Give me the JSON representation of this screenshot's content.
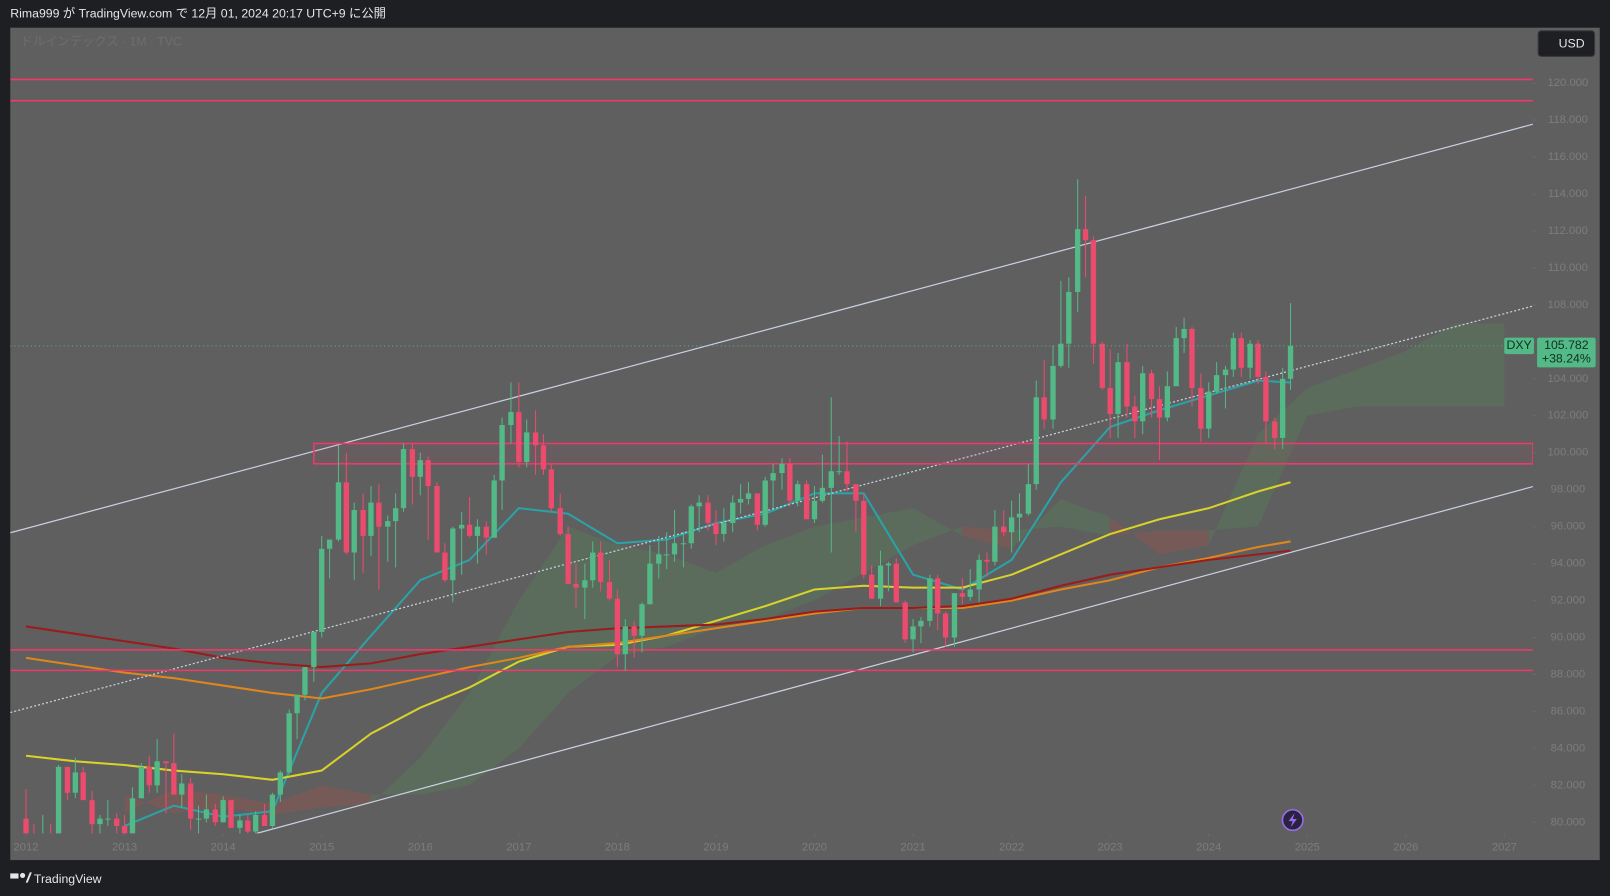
{
  "header": {
    "text": "Rima999 が TradingView.com で 12月 01, 2024 20:17 UTC+9 に公開"
  },
  "footer": {
    "logo": "TradingView"
  },
  "chart_data": {
    "type": "candlestick",
    "title": "ドルインデックス · 1M · TVC",
    "currency": "USD",
    "symbol": "DXY",
    "last_price": 105.782,
    "change_label": "+38.24%",
    "up_color": "#53b987",
    "down_color": "#ec4b6d",
    "xlim": [
      2011.84,
      2027.29
    ],
    "xticks": [
      2012,
      2013,
      2014,
      2015,
      2016,
      2017,
      2018,
      2019,
      2020,
      2021,
      2022,
      2023,
      2024,
      2025,
      2026,
      2027
    ],
    "ylim": [
      79.4,
      123
    ],
    "yticks": [
      {
        "value": 80,
        "label": "80.000"
      },
      {
        "value": 82,
        "label": "82.000"
      },
      {
        "value": 84,
        "label": "84.000"
      },
      {
        "value": 86,
        "label": "86.000"
      },
      {
        "value": 88,
        "label": "88.000"
      },
      {
        "value": 90,
        "label": "90.000"
      },
      {
        "value": 92,
        "label": "92.000"
      },
      {
        "value": 94,
        "label": "94.000"
      },
      {
        "value": 96,
        "label": "96.000"
      },
      {
        "value": 98,
        "label": "98.000"
      },
      {
        "value": 100,
        "label": "100.000"
      },
      {
        "value": 102,
        "label": "102.000"
      },
      {
        "value": 104,
        "label": "104.000"
      },
      {
        "value": 106,
        "label": "106.000"
      },
      {
        "value": 108,
        "label": "108.000"
      },
      {
        "value": 110,
        "label": "110.000"
      },
      {
        "value": 112,
        "label": "112.000"
      },
      {
        "value": 114,
        "label": "114.000"
      },
      {
        "value": 116,
        "label": "116.000"
      },
      {
        "value": 118,
        "label": "118.000"
      },
      {
        "value": 120,
        "label": "120.000"
      }
    ],
    "grid": false,
    "x": [
      2012,
      2012.08,
      2012.17,
      2012.25,
      2012.33,
      2012.42,
      2012.5,
      2012.58,
      2012.67,
      2012.75,
      2012.83,
      2012.92,
      2013,
      2013.08,
      2013.17,
      2013.25,
      2013.33,
      2013.42,
      2013.5,
      2013.58,
      2013.67,
      2013.75,
      2013.83,
      2013.92,
      2014,
      2014.08,
      2014.17,
      2014.25,
      2014.33,
      2014.42,
      2014.5,
      2014.58,
      2014.67,
      2014.75,
      2014.83,
      2014.92,
      2015,
      2015.08,
      2015.17,
      2015.25,
      2015.33,
      2015.42,
      2015.5,
      2015.58,
      2015.67,
      2015.75,
      2015.83,
      2015.92,
      2016,
      2016.08,
      2016.17,
      2016.25,
      2016.33,
      2016.42,
      2016.5,
      2016.58,
      2016.67,
      2016.75,
      2016.83,
      2016.92,
      2017,
      2017.08,
      2017.17,
      2017.25,
      2017.33,
      2017.42,
      2017.5,
      2017.58,
      2017.67,
      2017.75,
      2017.83,
      2017.92,
      2018,
      2018.08,
      2018.17,
      2018.25,
      2018.33,
      2018.42,
      2018.5,
      2018.58,
      2018.67,
      2018.75,
      2018.83,
      2018.92,
      2019,
      2019.08,
      2019.17,
      2019.25,
      2019.33,
      2019.42,
      2019.5,
      2019.58,
      2019.67,
      2019.75,
      2019.83,
      2019.92,
      2020,
      2020.08,
      2020.17,
      2020.25,
      2020.33,
      2020.42,
      2020.5,
      2020.58,
      2020.67,
      2020.75,
      2020.83,
      2020.92,
      2021,
      2021.08,
      2021.17,
      2021.25,
      2021.33,
      2021.42,
      2021.5,
      2021.58,
      2021.67,
      2021.75,
      2021.83,
      2021.92,
      2022,
      2022.08,
      2022.17,
      2022.25,
      2022.33,
      2022.42,
      2022.5,
      2022.58,
      2022.67,
      2022.75,
      2022.83,
      2022.92,
      2023,
      2023.08,
      2023.17,
      2023.25,
      2023.33,
      2023.42,
      2023.5,
      2023.58,
      2023.67,
      2023.75,
      2023.83,
      2023.92,
      2024,
      2024.08,
      2024.17,
      2024.25,
      2024.33,
      2024.42,
      2024.5,
      2024.58,
      2024.67,
      2024.75,
      2024.83
    ],
    "open": [
      80.2,
      79.3,
      79.0,
      79.0,
      78.8,
      83.0,
      81.6,
      82.7,
      81.2,
      79.9,
      80.2,
      80.2,
      79.8,
      79.2,
      81.3,
      83.0,
      82.0,
      83.3,
      83.2,
      81.5,
      82.1,
      80.2,
      80.2,
      80.7,
      80.0,
      81.2,
      79.7,
      80.1,
      79.5,
      80.4,
      79.8,
      81.5,
      82.7,
      85.9,
      86.9,
      88.4,
      90.3,
      94.8,
      95.3,
      98.4,
      94.6,
      96.9,
      95.5,
      97.3,
      96.0,
      96.3,
      97.0,
      100.2,
      98.7,
      99.6,
      98.2,
      94.6,
      93.1,
      95.9,
      96.1,
      95.5,
      96.0,
      95.4,
      98.5,
      101.5,
      102.2,
      99.5,
      101.1,
      100.4,
      99.1,
      97.0,
      95.6,
      92.9,
      92.7,
      93.1,
      94.6,
      93.0,
      92.1,
      89.1,
      90.6,
      90.1,
      91.8,
      94.0,
      94.5,
      94.5,
      95.1,
      95.1,
      97.1,
      97.3,
      96.2,
      95.6,
      96.2,
      97.3,
      97.5,
      97.8,
      96.1,
      98.5,
      98.9,
      99.4,
      97.4,
      98.3,
      96.4,
      97.4,
      98.1,
      99.0,
      99.0,
      98.3,
      97.4,
      93.4,
      92.1,
      93.9,
      94.0,
      91.9,
      89.9,
      90.6,
      90.9,
      93.2,
      91.3,
      90.0,
      92.4,
      92.2,
      92.6,
      94.2,
      94.1,
      96.0,
      95.7,
      96.5,
      96.7,
      98.3,
      103.0,
      101.8,
      104.7,
      105.9,
      108.7,
      112.1,
      111.5,
      105.9,
      103.5,
      102.1,
      104.9,
      102.5,
      101.7,
      104.3,
      102.9,
      101.9,
      103.6,
      106.2,
      106.7,
      103.5,
      101.3,
      103.3,
      104.2,
      104.5,
      106.2,
      104.6,
      105.9,
      104.1,
      101.7,
      100.8,
      104.0
    ],
    "high": [
      81.8,
      79.9,
      80.4,
      79.9,
      83.1,
      83.0,
      83.5,
      83.0,
      81.7,
      80.4,
      81.2,
      80.5,
      80.4,
      81.9,
      83.2,
      83.6,
      84.5,
      83.3,
      84.8,
      82.6,
      82.4,
      80.9,
      81.5,
      81.0,
      81.4,
      81.2,
      80.4,
      80.4,
      80.6,
      81.0,
      81.6,
      82.8,
      86.1,
      86.9,
      88.4,
      90.3,
      95.5,
      95.3,
      100.4,
      100.0,
      97.3,
      97.8,
      98.2,
      98.3,
      96.6,
      97.8,
      100.5,
      100.5,
      100.0,
      99.8,
      98.4,
      95.1,
      96.0,
      96.8,
      97.6,
      96.4,
      96.3,
      98.8,
      101.9,
      103.8,
      103.8,
      101.8,
      102.3,
      101.0,
      99.4,
      97.8,
      96.0,
      94.0,
      94.0,
      95.2,
      95.2,
      94.2,
      92.6,
      91.0,
      90.9,
      91.9,
      95.0,
      95.5,
      95.7,
      96.9,
      95.7,
      97.2,
      97.7,
      97.7,
      96.9,
      97.0,
      97.7,
      98.3,
      98.4,
      97.8,
      98.7,
      99.4,
      99.7,
      99.7,
      98.5,
      98.5,
      98.2,
      99.9,
      103.0,
      100.9,
      100.6,
      98.3,
      97.8,
      93.9,
      94.7,
      94.1,
      94.3,
      92.0,
      91.0,
      91.1,
      93.4,
      93.4,
      91.4,
      92.4,
      93.2,
      93.7,
      94.5,
      94.6,
      96.9,
      96.9,
      97.4,
      97.8,
      99.4,
      103.9,
      105.0,
      105.8,
      109.3,
      109.5,
      114.8,
      113.9,
      111.7,
      106.0,
      105.6,
      105.4,
      105.9,
      103.1,
      104.7,
      104.5,
      103.6,
      104.4,
      106.8,
      107.3,
      106.8,
      104.3,
      103.8,
      104.9,
      104.7,
      106.5,
      106.5,
      106.1,
      106.1,
      104.4,
      101.9,
      104.6,
      108.1
    ],
    "low": [
      78.9,
      78.1,
      78.6,
      78.7,
      78.7,
      81.2,
      81.3,
      81.2,
      78.6,
      79.0,
      79.8,
      79.0,
      79.0,
      78.9,
      81.3,
      81.6,
      81.6,
      80.5,
      81.6,
      80.8,
      79.6,
      79.0,
      80.0,
      79.8,
      80.0,
      79.7,
      79.2,
      79.2,
      78.9,
      79.8,
      79.7,
      81.1,
      82.6,
      84.5,
      86.6,
      87.6,
      90.0,
      93.2,
      95.2,
      94.5,
      93.1,
      93.5,
      94.4,
      92.6,
      94.1,
      93.8,
      96.8,
      97.2,
      97.7,
      95.3,
      94.6,
      93.0,
      91.9,
      93.4,
      95.4,
      94.0,
      94.5,
      95.4,
      96.9,
      100.5,
      99.2,
      99.2,
      98.8,
      98.8,
      96.8,
      95.5,
      92.9,
      91.6,
      91.0,
      92.7,
      92.5,
      92.0,
      88.4,
      88.2,
      88.9,
      89.2,
      91.8,
      93.2,
      93.7,
      94.1,
      93.8,
      94.8,
      95.7,
      95.8,
      95.0,
      95.2,
      95.7,
      96.7,
      97.2,
      95.8,
      96.0,
      97.0,
      98.0,
      97.1,
      97.1,
      96.4,
      96.2,
      97.3,
      94.6,
      98.8,
      97.9,
      95.7,
      93.2,
      92.1,
      91.7,
      92.5,
      91.9,
      89.7,
      89.2,
      89.7,
      90.6,
      90.4,
      89.5,
      89.5,
      91.8,
      92.0,
      91.9,
      93.3,
      93.9,
      95.5,
      94.6,
      95.2,
      96.6,
      98.0,
      101.3,
      101.3,
      104.6,
      104.6,
      107.6,
      109.5,
      104.8,
      103.4,
      100.8,
      100.8,
      101.9,
      100.8,
      101.0,
      101.9,
      99.6,
      101.7,
      103.6,
      105.4,
      102.5,
      100.6,
      100.8,
      103.2,
      102.4,
      104.1,
      104.1,
      104.0,
      103.7,
      100.5,
      100.2,
      100.2,
      103.4
    ],
    "close": [
      79.3,
      79.0,
      79.0,
      78.8,
      83.0,
      81.6,
      82.7,
      81.2,
      79.9,
      80.2,
      80.2,
      79.8,
      79.2,
      81.3,
      83.0,
      82.0,
      83.3,
      83.2,
      81.5,
      82.1,
      80.2,
      80.2,
      80.7,
      80.0,
      81.2,
      79.7,
      80.1,
      79.5,
      80.4,
      79.8,
      81.5,
      82.7,
      85.9,
      86.9,
      88.4,
      90.3,
      94.8,
      95.3,
      98.4,
      94.6,
      96.9,
      95.5,
      97.3,
      96.0,
      96.3,
      97.0,
      100.2,
      98.7,
      99.6,
      98.2,
      94.6,
      93.1,
      95.9,
      96.1,
      95.5,
      96.0,
      95.4,
      98.5,
      101.5,
      102.2,
      99.5,
      101.1,
      100.4,
      99.1,
      97.0,
      95.6,
      92.9,
      92.7,
      93.1,
      94.6,
      93.0,
      92.1,
      89.1,
      90.6,
      90.1,
      91.8,
      94.0,
      94.5,
      94.5,
      95.1,
      95.1,
      97.1,
      97.3,
      96.2,
      95.6,
      96.2,
      97.3,
      97.5,
      97.8,
      96.1,
      98.5,
      98.9,
      99.4,
      97.4,
      98.3,
      96.4,
      97.4,
      98.1,
      99.0,
      99.0,
      98.3,
      97.4,
      93.4,
      92.1,
      93.9,
      94.0,
      91.9,
      89.9,
      90.6,
      90.9,
      93.2,
      91.3,
      90.0,
      92.4,
      92.2,
      92.6,
      94.2,
      94.1,
      96.0,
      95.7,
      96.5,
      96.7,
      98.3,
      103.0,
      101.8,
      104.7,
      105.9,
      108.7,
      112.1,
      111.5,
      105.9,
      103.5,
      102.1,
      104.9,
      102.5,
      101.7,
      104.3,
      102.9,
      101.9,
      103.6,
      106.2,
      106.7,
      103.5,
      101.3,
      103.3,
      104.2,
      104.5,
      106.2,
      104.6,
      105.9,
      104.1,
      101.7,
      100.8,
      104.0,
      105.782
    ],
    "moving_averages": {
      "x": [
        2012,
        2012.5,
        2013,
        2013.5,
        2014,
        2014.5,
        2015,
        2015.5,
        2016,
        2016.5,
        2017,
        2017.5,
        2018,
        2018.5,
        2019,
        2019.5,
        2020,
        2020.5,
        2021,
        2021.5,
        2022,
        2022.5,
        2023,
        2023.5,
        2024,
        2024.5,
        2024.83
      ],
      "series": [
        {
          "color": "#2aa3a8",
          "values": [
            null,
            null,
            79.8,
            80.9,
            80.3,
            80.6,
            87,
            90.1,
            93.1,
            94.2,
            97,
            96.7,
            95.1,
            95.3,
            96.2,
            96.7,
            97.8,
            97.8,
            93.4,
            92.6,
            94.2,
            98.4,
            101.4,
            102.3,
            103.1,
            103.9,
            103.8
          ]
        },
        {
          "color": "#d9d22a",
          "values": [
            83.6,
            83.3,
            83.1,
            82.8,
            82.6,
            82.3,
            82.8,
            84.8,
            86.2,
            87.3,
            88.7,
            89.5,
            89.6,
            90.1,
            90.9,
            91.7,
            92.6,
            92.8,
            92.7,
            92.7,
            93.4,
            94.5,
            95.6,
            96.4,
            97,
            97.9,
            98.4
          ]
        },
        {
          "color": "#e0861c",
          "values": [
            88.9,
            88.5,
            88.1,
            87.8,
            87.4,
            87.0,
            86.7,
            87.2,
            87.8,
            88.4,
            88.9,
            89.5,
            89.7,
            90.1,
            90.5,
            90.9,
            91.3,
            91.6,
            91.6,
            91.6,
            92.0,
            92.6,
            93.1,
            93.8,
            94.3,
            94.9,
            95.2
          ]
        },
        {
          "color": "#9b1c1c",
          "values": [
            90.6,
            90.2,
            89.8,
            89.4,
            88.9,
            88.6,
            88.4,
            88.6,
            89.1,
            89.5,
            89.9,
            90.3,
            90.5,
            90.6,
            90.7,
            91.0,
            91.4,
            91.6,
            91.6,
            91.7,
            92.1,
            92.8,
            93.4,
            93.8,
            94.2,
            94.5,
            94.7
          ]
        }
      ]
    },
    "cloud": {
      "x": [
        2013,
        2013.5,
        2014,
        2014.5,
        2015,
        2015.5,
        2016,
        2016.5,
        2017,
        2017.5,
        2018,
        2018.5,
        2019,
        2019.5,
        2020,
        2020.5,
        2021,
        2021.5,
        2022,
        2022.5,
        2023,
        2023.5,
        2024,
        2024.5,
        2025,
        2025.5,
        2026,
        2026.5,
        2027
      ],
      "span_a": [
        81.5,
        80.5,
        80.8,
        80.4,
        80.8,
        81.0,
        83.5,
        87.0,
        92.0,
        96.0,
        95.0,
        94.5,
        93.5,
        95.0,
        96.0,
        96.5,
        97.0,
        95.5,
        94.8,
        97.5,
        96.5,
        94.5,
        95.0,
        101.0,
        103.5,
        104.5,
        105.5,
        107.0,
        107.0
      ],
      "span_b": [
        80.5,
        81.8,
        81.5,
        81.0,
        82.0,
        81.5,
        81.5,
        82.0,
        84.0,
        87.0,
        89.0,
        89.5,
        90.5,
        91.0,
        92.0,
        93.5,
        95.0,
        96.0,
        95.8,
        96.0,
        95.5,
        95.8,
        95.8,
        96.0,
        102.0,
        102.5,
        102.5,
        102.5,
        102.5
      ],
      "up_color": "#4caf50",
      "down_color": "#f44336"
    },
    "levels": {
      "color": "#f2386a",
      "values": [
        120.2,
        119.05,
        89.33,
        88.22
      ]
    },
    "zone": {
      "x0": 2014.92,
      "top": 100.5,
      "bottom": 99.4
    },
    "trend_lines": [
      {
        "x": [
          2011.84,
          2027.29
        ],
        "y": [
          95.67,
          117.78
        ],
        "color": "#c8d0e0",
        "dashed": false
      },
      {
        "x": [
          2011.84,
          2027.29
        ],
        "y": [
          85.94,
          107.94
        ],
        "color": "#c8d0e0",
        "dashed": true
      },
      {
        "x": [
          2014.34,
          2027.29
        ],
        "y": [
          79.4,
          98.17
        ],
        "color": "#c8d0e0",
        "dashed": false
      }
    ]
  }
}
